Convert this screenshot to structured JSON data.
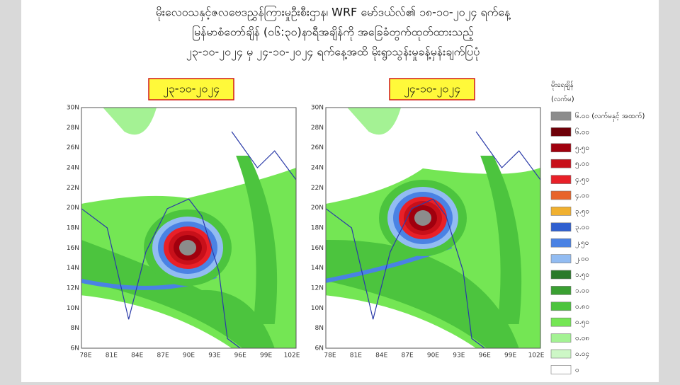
{
  "header": {
    "lines": [
      "မိုးလေဝသနှင့်ဇလဗေဒညွှန်ကြားမှုဦးစီးဌာန၊ WRF မော်ဒယ်လ်၏ ၁၈-၁၀-၂၀၂၄ ရက်နေ့",
      "မြန်မာစံတော်ချိန် (၀၆:၃၀)နာရီအချိန်ကို အခြေခံတွက်ထုတ်ထားသည့်",
      "၂၃-၁၀-၂၀၂၄ မှ ၂၄-၁၀-၂၀၂၄ ရက်နေ့အထိ မိုးရွာသွန်းမှုခန့်မှန်းချက်ပြပုံ"
    ]
  },
  "panels": [
    {
      "date_label": "၂၃-၁၀-၂၀၂၄"
    },
    {
      "date_label": "၂၄-၁၀-၂၀၂၄"
    }
  ],
  "map_axes": {
    "latitudes": [
      "30N",
      "28N",
      "26N",
      "24N",
      "22N",
      "20N",
      "18N",
      "16N",
      "14N",
      "12N",
      "10N",
      "8N",
      "6N"
    ],
    "longitudes": [
      "78E",
      "81E",
      "84E",
      "87E",
      "90E",
      "93E",
      "96E",
      "99E",
      "102E"
    ]
  },
  "legend": {
    "title": "မိုးရေချိန်",
    "unit": "(လက်မ)",
    "items": [
      {
        "label": "၆.၀၀ (လက်မနှင့် အထက်)",
        "color": "#8c8c8c"
      },
      {
        "label": "၆.၀၀",
        "color": "#6e0008"
      },
      {
        "label": "၅.၅၀",
        "color": "#a0000e"
      },
      {
        "label": "၅.၀၀",
        "color": "#c8101a"
      },
      {
        "label": "၄.၅၀",
        "color": "#e82028"
      },
      {
        "label": "၄.၀၀",
        "color": "#e8642a"
      },
      {
        "label": "၃.၅၀",
        "color": "#f0b030"
      },
      {
        "label": "၃.၀၀",
        "color": "#2f5fd0"
      },
      {
        "label": "၂.၅၀",
        "color": "#4a82e4"
      },
      {
        "label": "၂.၀၀",
        "color": "#92bcf2"
      },
      {
        "label": "၁.၅၀",
        "color": "#2a7a2a"
      },
      {
        "label": "၁.၀၀",
        "color": "#3aa032"
      },
      {
        "label": "၀.၈၀",
        "color": "#4cc43e"
      },
      {
        "label": "၀.၅၀",
        "color": "#74e654"
      },
      {
        "label": "၀.၀၈",
        "color": "#a4f294"
      },
      {
        "label": "၀.၀၄",
        "color": "#cdf7c6"
      },
      {
        "label": "၀",
        "color": "#ffffff"
      }
    ]
  }
}
